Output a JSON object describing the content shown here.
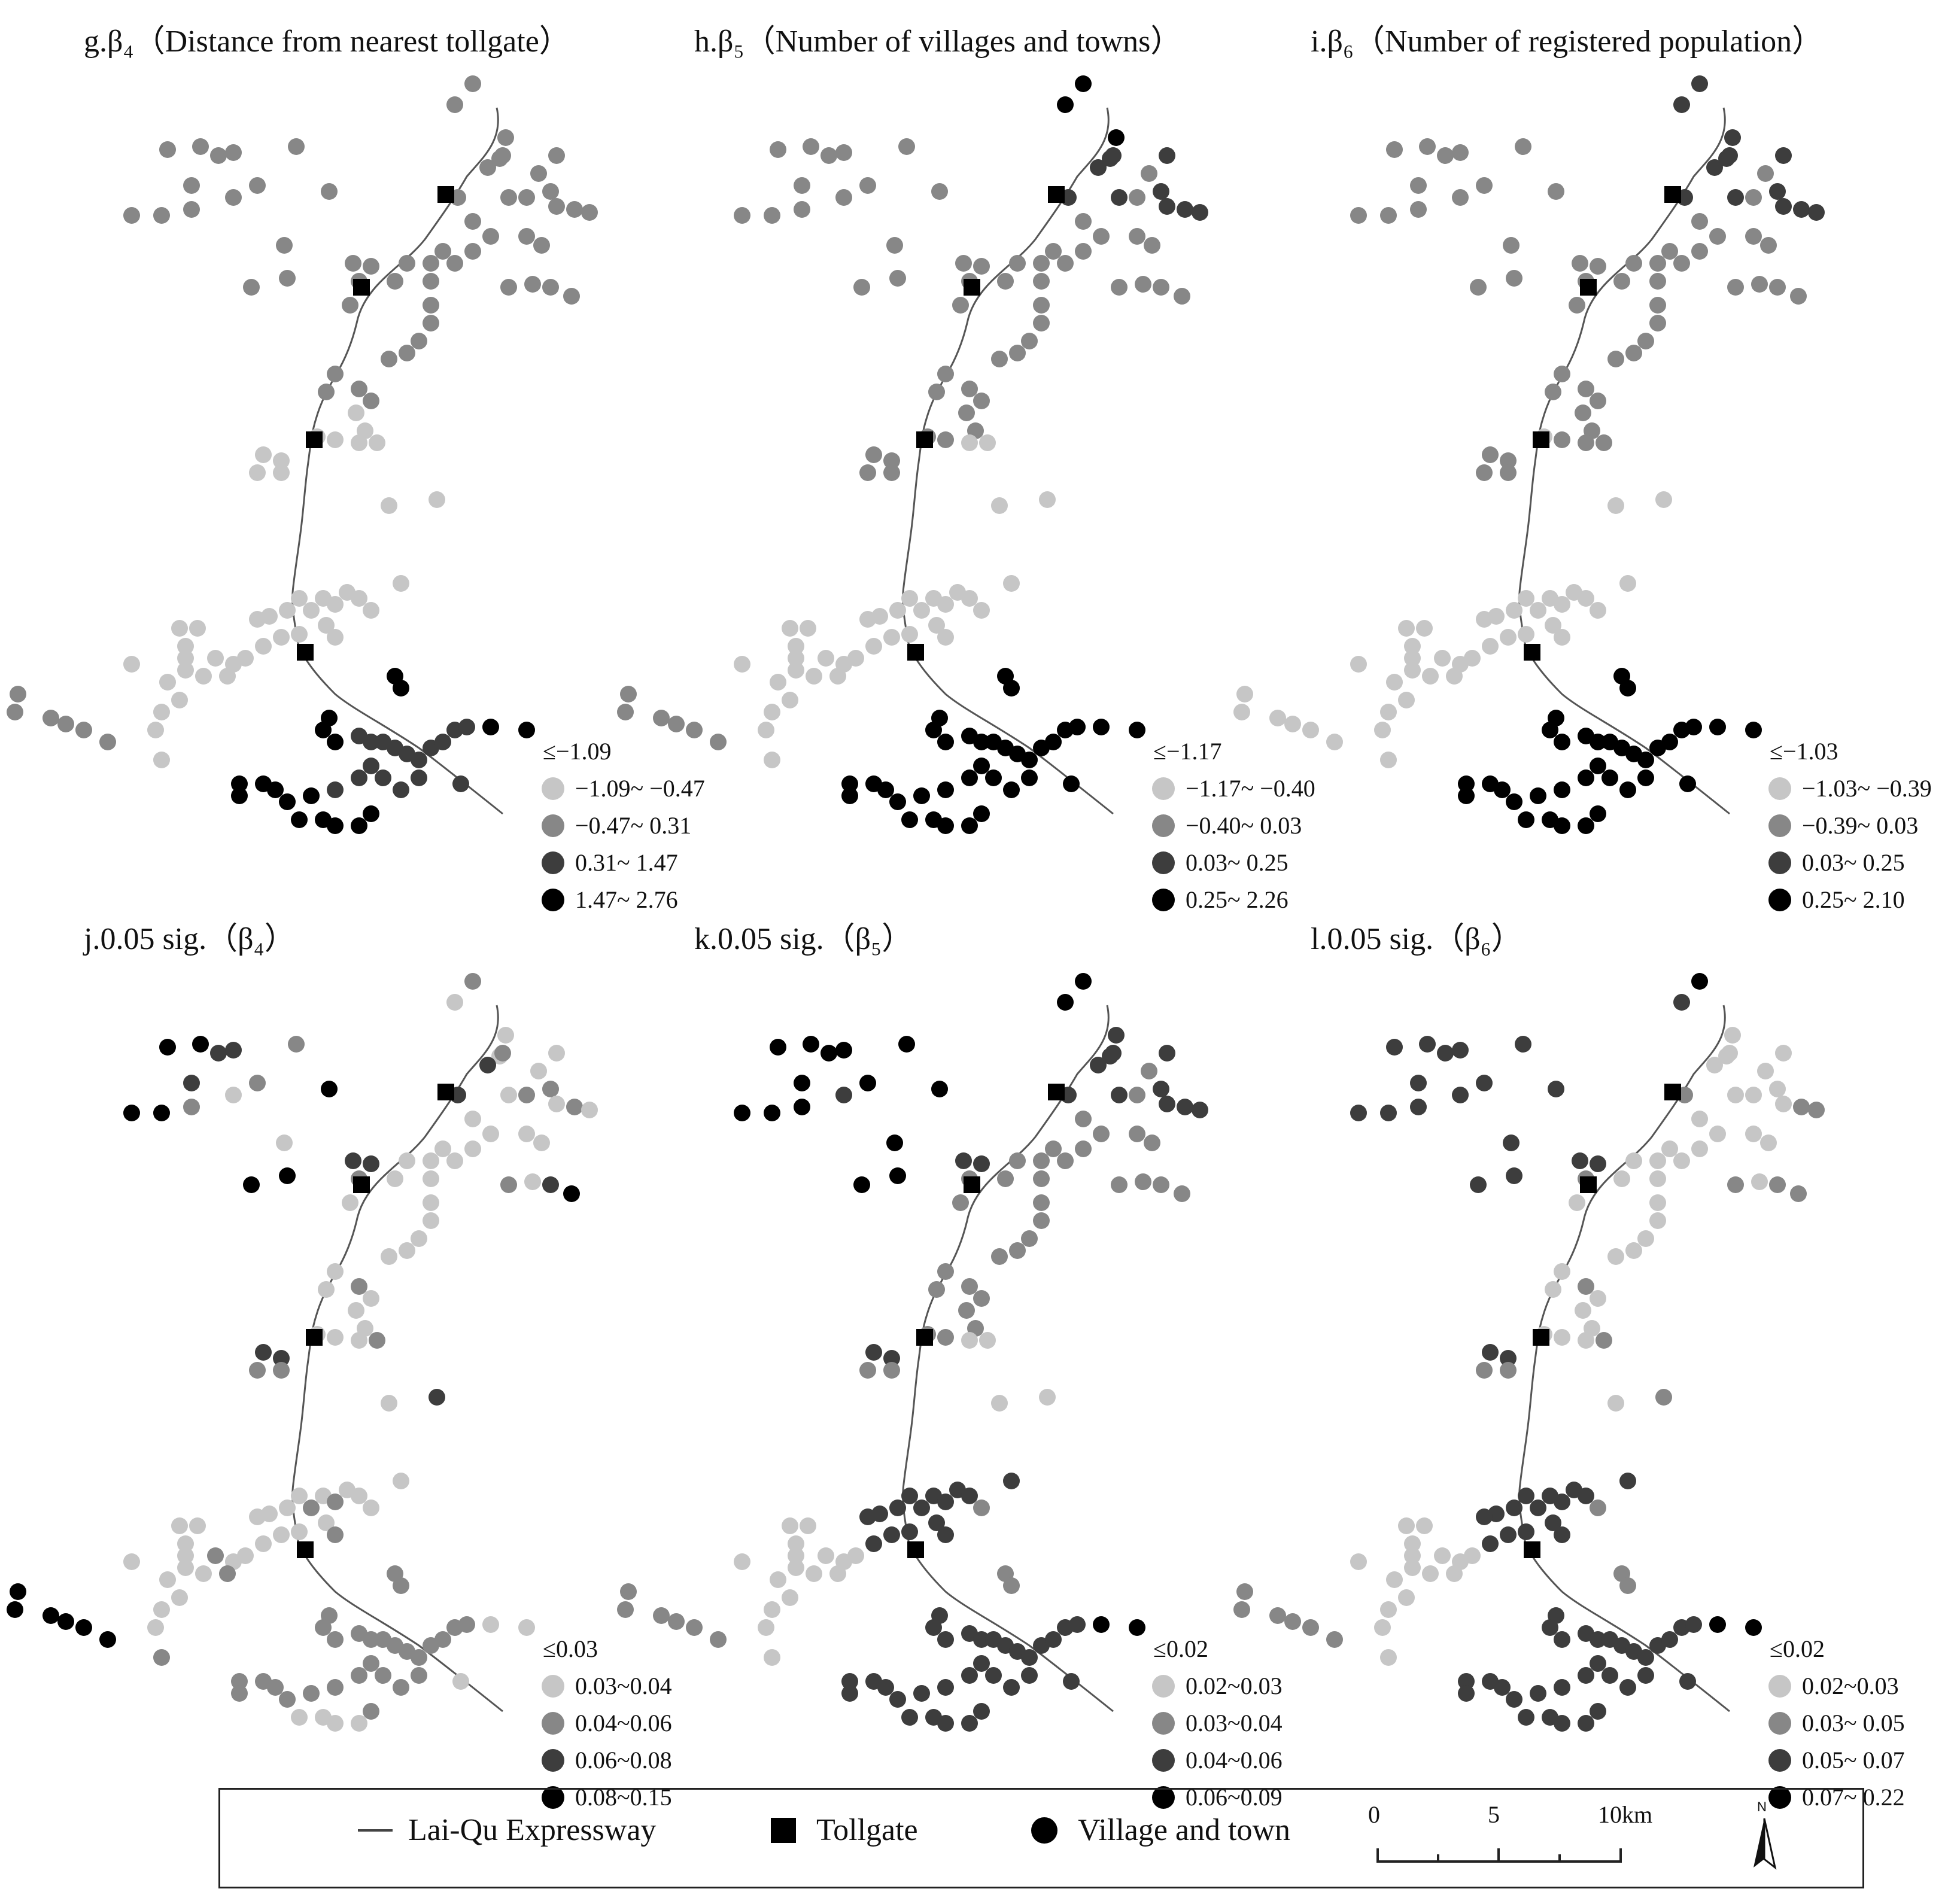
{
  "panels": [
    {
      "id": "g",
      "title": "g.β₄（Distance from nearest tollgate）",
      "legend": [
        "≤−1.09",
        "−1.09~ −0.47",
        "−0.47~ 0.31",
        "0.31~ 1.47",
        "1.47~ 2.76"
      ]
    },
    {
      "id": "h",
      "title": "h.β₅（Number of villages and towns）",
      "legend": [
        "≤−1.17",
        "−1.17~ −0.40",
        "−0.40~ 0.03",
        "0.03~ 0.25",
        "0.25~ 2.26"
      ]
    },
    {
      "id": "i",
      "title": "i.β₆（Number of registered population）",
      "legend": [
        "≤−1.03",
        "−1.03~ −0.39",
        "−0.39~ 0.03",
        "0.03~ 0.25",
        "0.25~ 2.10"
      ]
    },
    {
      "id": "j",
      "title": "j.0.05 sig.（β₄）",
      "legend": [
        "≤0.03",
        "0.03~0.04",
        "0.04~0.06",
        "0.06~0.08",
        "0.08~0.15"
      ]
    },
    {
      "id": "k",
      "title": "k.0.05 sig.（β₅）",
      "legend": [
        "≤0.02",
        "0.02~0.03",
        "0.03~0.04",
        "0.04~0.06",
        "0.06~0.09"
      ]
    },
    {
      "id": "l",
      "title": "l.0.05 sig.（β₆）",
      "legend": [
        "≤0.02",
        "0.02~0.03",
        "0.03~ 0.05",
        "0.05~ 0.07",
        "0.07~ 0.22"
      ]
    }
  ],
  "class_colors": [
    "#ffffff",
    "#c6c6c6",
    "#878787",
    "#3d3d3d",
    "#000000"
  ],
  "bottom_legend": {
    "expressway": "Lai-Qu Expressway",
    "tollgate": "Tollgate",
    "village": "Village and town",
    "scale": {
      "zero": "0",
      "five": "5",
      "ten": "10km"
    },
    "north": "N"
  }
}
